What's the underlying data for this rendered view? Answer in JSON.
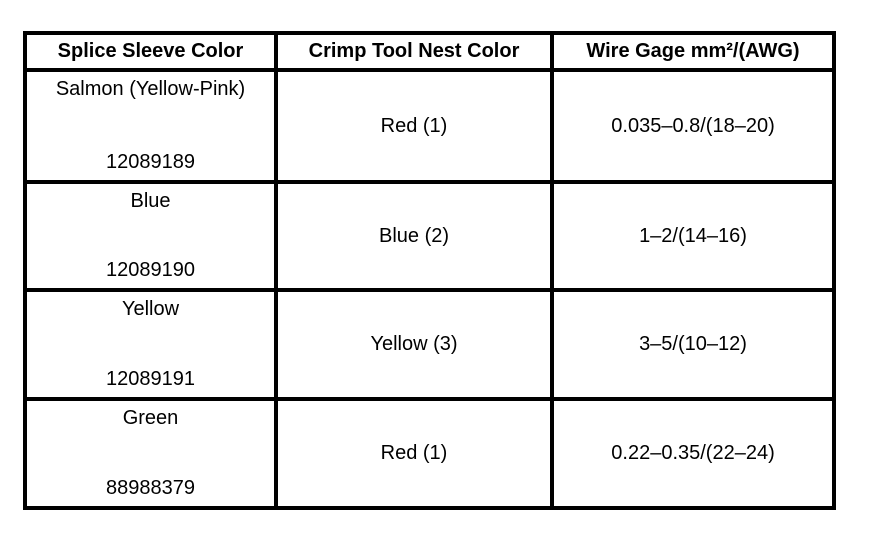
{
  "table": {
    "headers": [
      "Splice Sleeve Color",
      "Crimp Tool Nest Color",
      "Wire Gage mm²/(AWG)"
    ],
    "rows": [
      {
        "sleeve_color": "Salmon (Yellow-Pink)",
        "part_number": "12089189",
        "nest_color": "Red (1)",
        "wire_gage": "0.035–0.8/(18–20)"
      },
      {
        "sleeve_color": "Blue",
        "part_number": "12089190",
        "nest_color": "Blue (2)",
        "wire_gage": "1–2/(14–16)"
      },
      {
        "sleeve_color": "Yellow",
        "part_number": "12089191",
        "nest_color": "Yellow (3)",
        "wire_gage": "3–5/(10–12)"
      },
      {
        "sleeve_color": "Green",
        "part_number": "88988379",
        "nest_color": "Red (1)",
        "wire_gage": "0.22–0.35/(22–24)"
      }
    ]
  }
}
